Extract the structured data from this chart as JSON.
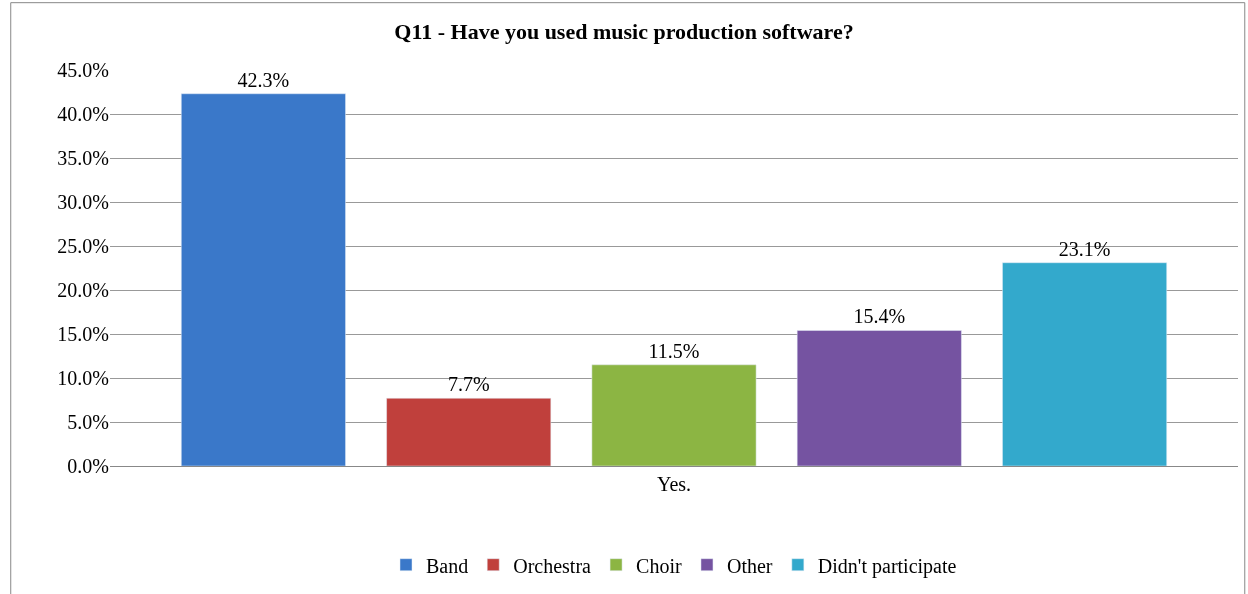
{
  "chart_data": {
    "type": "bar",
    "title": "Q11 - Have you used music production software?",
    "categories": [
      "Yes."
    ],
    "series": [
      {
        "name": "Band",
        "color": "#3a78c9",
        "values": [
          42.3
        ],
        "value_labels": [
          "42.3%"
        ]
      },
      {
        "name": "Orchestra",
        "color": "#c0403c",
        "values": [
          7.7
        ],
        "value_labels": [
          "7.7%"
        ]
      },
      {
        "name": "Choir",
        "color": "#8cb543",
        "values": [
          11.5
        ],
        "value_labels": [
          "11.5%"
        ]
      },
      {
        "name": "Other",
        "color": "#7553a1",
        "values": [
          15.4
        ],
        "value_labels": [
          "15.4%"
        ]
      },
      {
        "name": "Didn't participate",
        "color": "#33a9cc",
        "values": [
          23.1
        ],
        "value_labels": [
          "23.1%"
        ]
      }
    ],
    "ylim": [
      0,
      45
    ],
    "yticks": [
      {
        "value": 0,
        "label": "0.0%"
      },
      {
        "value": 5,
        "label": "5.0%"
      },
      {
        "value": 10,
        "label": "10.0%"
      },
      {
        "value": 15,
        "label": "15.0%"
      },
      {
        "value": 20,
        "label": "20.0%"
      },
      {
        "value": 25,
        "label": "25.0%"
      },
      {
        "value": 30,
        "label": "30.0%"
      },
      {
        "value": 35,
        "label": "35.0%"
      },
      {
        "value": 40,
        "label": "40.0%"
      },
      {
        "value": 45,
        "label": "45.0%"
      }
    ],
    "grid": "y",
    "legend": "bottom"
  }
}
